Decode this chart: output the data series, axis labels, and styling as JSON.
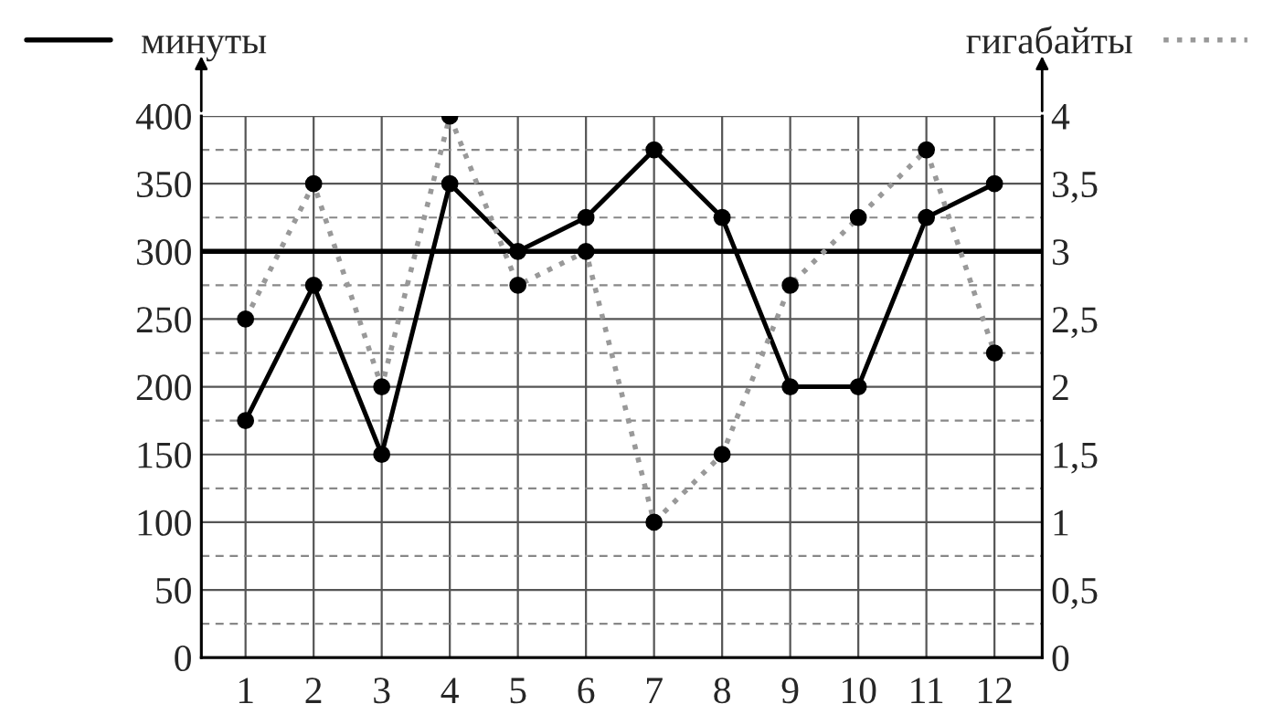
{
  "chart_data": {
    "type": "line",
    "categories": [
      "1",
      "2",
      "3",
      "4",
      "5",
      "6",
      "7",
      "8",
      "9",
      "10",
      "11",
      "12"
    ],
    "series": [
      {
        "name": "минуты",
        "color": "#000000",
        "line_style": "solid",
        "values": [
          175,
          275,
          150,
          350,
          300,
          325,
          375,
          325,
          200,
          200,
          325,
          350
        ]
      },
      {
        "name": "гигабайты",
        "color": "#999999",
        "line_style": "dotted",
        "axis": "y2",
        "values": [
          2.5,
          3.5,
          2,
          4,
          2.75,
          3,
          1,
          1.5,
          2.75,
          3.25,
          3.75,
          2.25
        ]
      }
    ],
    "ylim": [
      0,
      400
    ],
    "yticks": [
      0,
      50,
      100,
      150,
      200,
      250,
      300,
      350,
      400
    ],
    "y2lim": [
      0,
      4
    ],
    "y2ticks": [
      0,
      {
        "value": 0.5,
        "label": "0,5"
      },
      1,
      {
        "value": 1.5,
        "label": "1,5"
      },
      2,
      {
        "value": 2.5,
        "label": "2,5"
      },
      3,
      {
        "value": 3.5,
        "label": "3,5"
      },
      4
    ],
    "ref_lines": [
      {
        "axis": "y",
        "value": 300,
        "color": "#000000"
      }
    ],
    "grid": true,
    "marker": "circle"
  }
}
